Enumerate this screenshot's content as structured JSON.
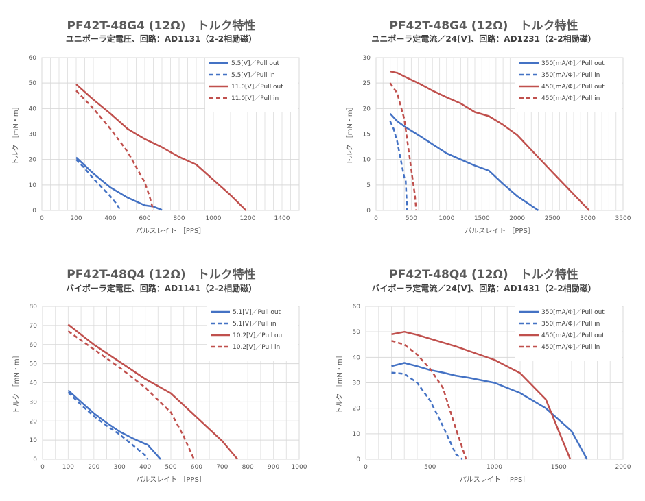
{
  "chart_data": [
    {
      "type": "line",
      "title": "PF42T-48G4 (12Ω)　トルク特性",
      "subtitle": "ユニポーラ定電圧、回路：AD1131（2-2相励磁）",
      "xlabel": "パルスレイト ［PPS］",
      "ylabel": "トルク ［mN・m］",
      "xlim": [
        0,
        1500
      ],
      "xticks": [
        0,
        200,
        400,
        600,
        800,
        1000,
        1200,
        1400
      ],
      "ylim": [
        0,
        60
      ],
      "yticks": [
        0,
        10,
        20,
        30,
        40,
        50,
        60
      ],
      "xgrid_step": 50,
      "ygrid": true,
      "legend": "top-right",
      "series": [
        {
          "name": "5.5[V]／Pull out",
          "color": "#4472C4",
          "dash": false,
          "x": [
            200,
            300,
            400,
            500,
            600,
            650,
            700
          ],
          "y": [
            20.8,
            14.5,
            9.0,
            5.0,
            2.0,
            1.5,
            0.2
          ]
        },
        {
          "name": "5.5[V]／Pull in",
          "color": "#4472C4",
          "dash": true,
          "x": [
            200,
            250,
            300,
            350,
            400,
            430,
            460
          ],
          "y": [
            20.0,
            16.5,
            12.5,
            9.0,
            5.5,
            3.0,
            0
          ]
        },
        {
          "name": "11.0[V]／Pull out",
          "color": "#C0504D",
          "dash": false,
          "x": [
            200,
            300,
            400,
            500,
            600,
            700,
            800,
            900,
            1000,
            1100,
            1190
          ],
          "y": [
            49.5,
            43.5,
            38.0,
            32.0,
            28.0,
            24.8,
            21.0,
            18.0,
            12.0,
            6.0,
            0
          ]
        },
        {
          "name": "11.0[V]／Pull in",
          "color": "#C0504D",
          "dash": true,
          "x": [
            200,
            300,
            400,
            500,
            600,
            630,
            650
          ],
          "y": [
            47.0,
            40.0,
            32.0,
            23.0,
            11.0,
            5.0,
            0
          ]
        }
      ]
    },
    {
      "type": "line",
      "title": "PF42T-48G4 (12Ω)　トルク特性",
      "subtitle": "ユニポーラ定電流／24[V]、回路：AD1231（2-2相励磁）",
      "xlabel": "パルスレイト ［PPS］",
      "ylabel": "トルク ［mN・m］",
      "xlim": [
        0,
        3500
      ],
      "xticks": [
        0,
        500,
        1000,
        1500,
        2000,
        2500,
        3000,
        3500
      ],
      "ylim": [
        0,
        30
      ],
      "yticks": [
        0,
        5,
        10,
        15,
        20,
        25,
        30
      ],
      "xgrid_step": 100,
      "ygrid": true,
      "legend": "top-right",
      "series": [
        {
          "name": "350[mA/Φ]／Pull out",
          "color": "#4472C4",
          "dash": false,
          "x": [
            200,
            300,
            400,
            600,
            800,
            1000,
            1200,
            1400,
            1600,
            1800,
            2000,
            2300
          ],
          "y": [
            19.0,
            17.5,
            16.5,
            14.8,
            13.0,
            11.2,
            10.0,
            8.8,
            7.8,
            5.2,
            2.8,
            0
          ]
        },
        {
          "name": "350[mA/Φ]／Pull in",
          "color": "#4472C4",
          "dash": true,
          "x": [
            200,
            250,
            300,
            350,
            400,
            420,
            440
          ],
          "y": [
            17.5,
            16.0,
            13.5,
            10.0,
            6.5,
            6.0,
            0
          ]
        },
        {
          "name": "450[mA/Φ]／Pull out",
          "color": "#C0504D",
          "dash": false,
          "x": [
            200,
            300,
            400,
            600,
            800,
            1000,
            1200,
            1400,
            1600,
            1800,
            2000,
            2500,
            3020
          ],
          "y": [
            27.3,
            27.0,
            26.3,
            25.0,
            23.5,
            22.2,
            21.0,
            19.3,
            18.5,
            16.8,
            14.8,
            7.5,
            0
          ]
        },
        {
          "name": "450[mA/Φ]／Pull in",
          "color": "#C0504D",
          "dash": true,
          "x": [
            200,
            300,
            400,
            450,
            500,
            550,
            570
          ],
          "y": [
            25.0,
            23.0,
            18.0,
            13.0,
            8.0,
            3.0,
            0
          ]
        }
      ]
    },
    {
      "type": "line",
      "title": "PF42T-48Q4 (12Ω)　トルク特性",
      "subtitle": "バイポーラ定電圧、回路：AD1141（2-2相励磁）",
      "xlabel": "パルスレイト ［PPS］",
      "ylabel": "トルク ［mN・m］",
      "xlim": [
        0,
        1000
      ],
      "xticks": [
        0,
        100,
        200,
        300,
        400,
        500,
        600,
        700,
        800,
        900,
        1000
      ],
      "ylim": [
        0,
        80
      ],
      "yticks": [
        0,
        10,
        20,
        30,
        40,
        50,
        60,
        70,
        80
      ],
      "xgrid_step": 50,
      "ygrid": true,
      "legend": "top-right",
      "series": [
        {
          "name": "5.1[V]／Pull out",
          "color": "#4472C4",
          "dash": false,
          "x": [
            100,
            150,
            200,
            250,
            300,
            350,
            400,
            410,
            460
          ],
          "y": [
            36.0,
            30.0,
            24.0,
            19.0,
            14.5,
            11.0,
            8.0,
            7.5,
            0
          ]
        },
        {
          "name": "5.1[V]／Pull in",
          "color": "#4472C4",
          "dash": true,
          "x": [
            100,
            150,
            200,
            250,
            300,
            350,
            400,
            410
          ],
          "y": [
            35.0,
            28.5,
            22.5,
            17.5,
            13.0,
            7.5,
            2.0,
            0
          ]
        },
        {
          "name": "10.2[V]／Pull out",
          "color": "#C0504D",
          "dash": false,
          "x": [
            100,
            200,
            300,
            400,
            500,
            600,
            700,
            760
          ],
          "y": [
            70.5,
            60.0,
            51.0,
            42.0,
            34.5,
            22.0,
            9.5,
            0
          ]
        },
        {
          "name": "10.2[V]／Pull in",
          "color": "#C0504D",
          "dash": true,
          "x": [
            100,
            200,
            300,
            400,
            500,
            550,
            590
          ],
          "y": [
            67.0,
            57.5,
            48.0,
            37.5,
            24.5,
            12.0,
            0
          ]
        }
      ]
    },
    {
      "type": "line",
      "title": "PF42T-48Q4 (12Ω)　トルク特性",
      "subtitle": "バイポーラ定電流／24[V]、回路：AD1431（2-2相励磁）",
      "xlabel": "パルスレイト ［PPS］",
      "ylabel": "トルク ［mN・m］",
      "xlim": [
        0,
        2000
      ],
      "xticks": [
        0,
        500,
        1000,
        1500,
        2000
      ],
      "ylim": [
        0,
        60
      ],
      "yticks": [
        0,
        10,
        20,
        30,
        40,
        50,
        60
      ],
      "xgrid_step": 100,
      "ygrid": true,
      "legend": "top-right",
      "series": [
        {
          "name": "350[mA/Φ]／Pull out",
          "color": "#4472C4",
          "dash": false,
          "x": [
            200,
            300,
            400,
            500,
            600,
            700,
            800,
            1000,
            1200,
            1400,
            1600,
            1720
          ],
          "y": [
            36.5,
            37.8,
            36.5,
            35.0,
            34.0,
            32.8,
            32.0,
            30.0,
            26.0,
            20.0,
            11.0,
            0
          ]
        },
        {
          "name": "350[mA/Φ]／Pull in",
          "color": "#4472C4",
          "dash": true,
          "x": [
            200,
            300,
            400,
            500,
            600,
            700,
            750
          ],
          "y": [
            34.0,
            33.5,
            30.0,
            23.0,
            13.0,
            2.0,
            0
          ]
        },
        {
          "name": "450[mA/Φ]／Pull out",
          "color": "#C0504D",
          "dash": false,
          "x": [
            200,
            300,
            400,
            500,
            600,
            700,
            800,
            1000,
            1200,
            1400,
            1500,
            1590
          ],
          "y": [
            49.0,
            50.0,
            48.8,
            47.3,
            45.8,
            44.3,
            42.5,
            39.0,
            33.8,
            23.5,
            11.0,
            0
          ]
        },
        {
          "name": "450[mA/Φ]／Pull in",
          "color": "#C0504D",
          "dash": true,
          "x": [
            200,
            300,
            400,
            500,
            600,
            700,
            780
          ],
          "y": [
            46.5,
            45.0,
            41.0,
            35.5,
            28.0,
            12.0,
            0
          ]
        }
      ]
    }
  ]
}
